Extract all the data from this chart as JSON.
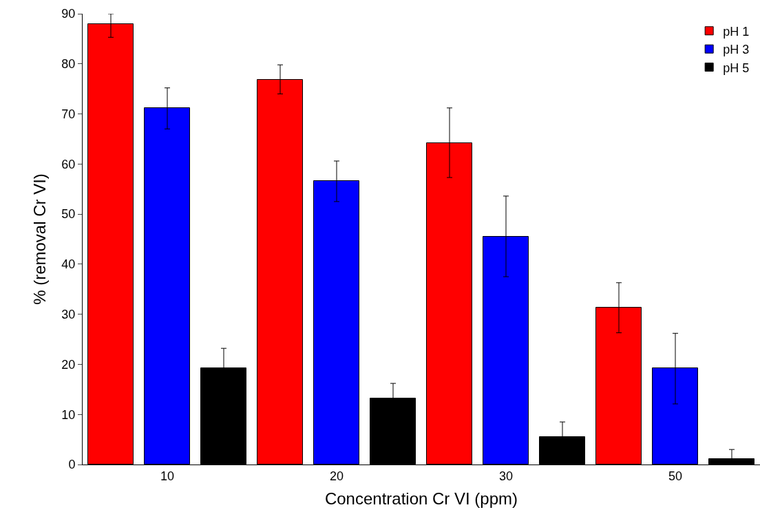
{
  "chart_data": {
    "type": "bar",
    "xlabel": "Concentration Cr VI (ppm)",
    "ylabel": "% (removal Cr VI)",
    "categories": [
      "10",
      "20",
      "30",
      "50"
    ],
    "series": [
      {
        "name": "pH 1",
        "color": "#ff0000",
        "values": [
          88,
          76.8,
          64.2,
          31.3
        ],
        "errors": [
          [
            85.3,
            90
          ],
          [
            74,
            79.8
          ],
          [
            57.3,
            71.2
          ],
          [
            26.3,
            36.3
          ]
        ]
      },
      {
        "name": "pH 3",
        "color": "#0000ff",
        "values": [
          71.2,
          56.6,
          45.5,
          19.2
        ],
        "errors": [
          [
            67,
            75.2
          ],
          [
            52.5,
            60.6
          ],
          [
            37.5,
            53.6
          ],
          [
            12.1,
            26.2
          ]
        ]
      },
      {
        "name": "pH 5",
        "color": "#000000",
        "values": [
          19.2,
          13.2,
          5.5,
          1.1
        ],
        "errors": [
          [
            19.2,
            23.2
          ],
          [
            13.2,
            16.2
          ],
          [
            5.5,
            8.5
          ],
          [
            0,
            3
          ]
        ]
      }
    ],
    "ylim": [
      0,
      90
    ],
    "yticks": [
      0,
      10,
      20,
      30,
      40,
      50,
      60,
      70,
      80,
      90
    ],
    "legend": "top right"
  }
}
